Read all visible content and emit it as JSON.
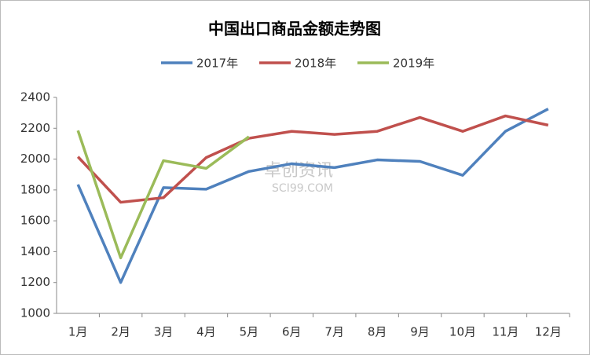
{
  "chart_data": {
    "type": "line",
    "title": "中国出口商品金额走势图",
    "categories": [
      "1月",
      "2月",
      "3月",
      "4月",
      "5月",
      "6月",
      "7月",
      "8月",
      "9月",
      "10月",
      "11月",
      "12月"
    ],
    "series": [
      {
        "name": "2017年",
        "color": "#4f81bd",
        "values": [
          1835,
          1200,
          1815,
          1805,
          1920,
          1970,
          1945,
          1995,
          1985,
          1895,
          2180,
          2325
        ]
      },
      {
        "name": "2018年",
        "color": "#c0504d",
        "values": [
          2015,
          1720,
          1750,
          2010,
          2135,
          2180,
          2160,
          2180,
          2270,
          2180,
          2280,
          2220
        ]
      },
      {
        "name": "2019年",
        "color": "#9bbb59",
        "values": [
          2185,
          1360,
          1990,
          1940,
          2145,
          null,
          null,
          null,
          null,
          null,
          null,
          null
        ]
      }
    ],
    "ylim": [
      1000,
      2400
    ],
    "yticks": [
      1000,
      1200,
      1400,
      1600,
      1800,
      2000,
      2200,
      2400
    ],
    "legend": "top",
    "grid": false,
    "watermark": [
      "卓创资讯",
      "SCI99.COM"
    ]
  }
}
